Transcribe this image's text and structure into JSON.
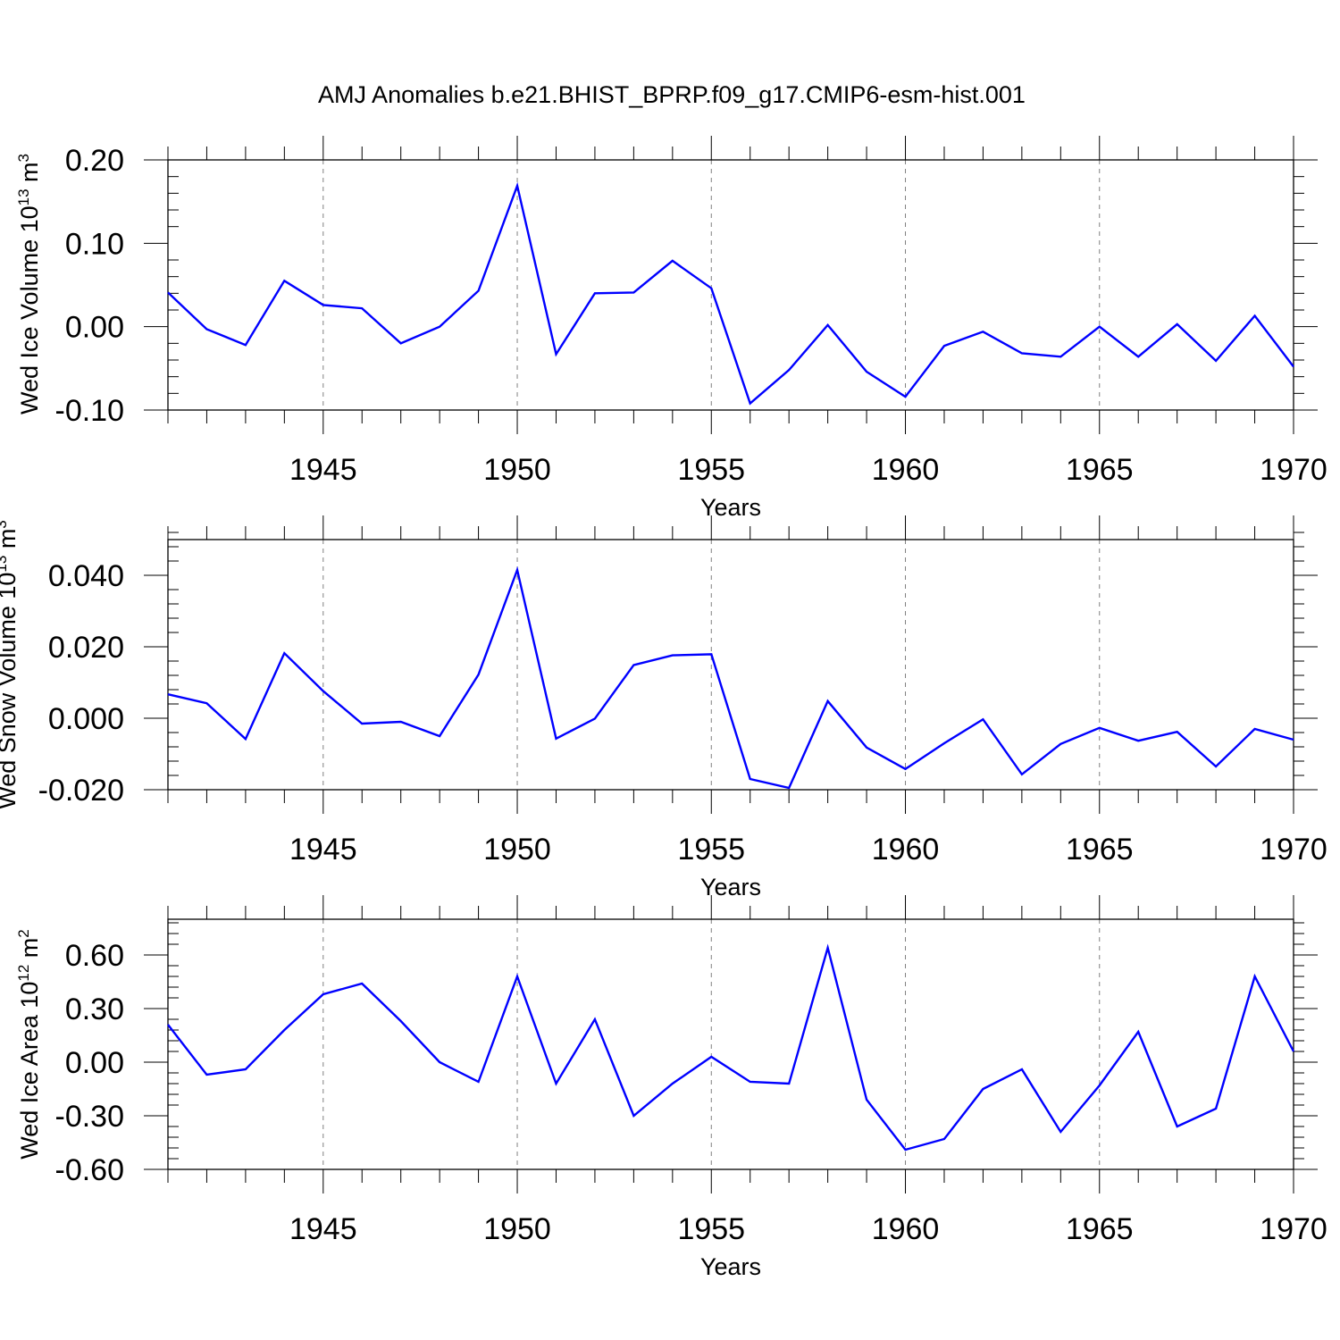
{
  "chart_data": [
    {
      "type": "line",
      "title": "AMJ Anomalies b.e21.BHIST_BPRP.f09_g17.CMIP6-esm-hist.001",
      "xlabel": "Years",
      "ylabel": {
        "base": "Wed Ice Volume 10",
        "exp": "13",
        "unit": " m",
        "unit_exp": "3"
      },
      "xlim": [
        1941,
        1970
      ],
      "ylim": [
        -0.1,
        0.2
      ],
      "xticks": [
        "1945",
        "1950",
        "1955",
        "1960",
        "1965",
        "1970"
      ],
      "yticks": [
        "0.20",
        "0.10",
        "0.00",
        "-0.10"
      ],
      "grid": "vertical dashed at major x ticks",
      "line_color": "#0000ff",
      "series": [
        {
          "x": [
            1941,
            1942,
            1943,
            1944,
            1945,
            1946,
            1947,
            1948,
            1949,
            1950,
            1951,
            1952,
            1953,
            1954,
            1955,
            1956,
            1957,
            1958,
            1959,
            1960,
            1961,
            1962,
            1963,
            1964,
            1965,
            1966,
            1967,
            1968,
            1969,
            1970
          ],
          "values": [
            0.041,
            -0.003,
            -0.022,
            0.055,
            0.026,
            0.022,
            -0.02,
            0.0,
            0.043,
            0.169,
            -0.033,
            0.04,
            0.041,
            0.079,
            0.046,
            -0.092,
            -0.052,
            0.002,
            -0.054,
            -0.084,
            -0.023,
            -0.006,
            -0.032,
            -0.036,
            0.0,
            -0.036,
            0.003,
            -0.041,
            0.013,
            -0.048
          ]
        }
      ]
    },
    {
      "type": "line",
      "title": "",
      "xlabel": "Years",
      "ylabel": {
        "base": "Wed Snow Volume 10",
        "exp": "13",
        "unit": " m",
        "unit_exp": "3"
      },
      "xlim": [
        1941,
        1970
      ],
      "ylim": [
        -0.02,
        0.05
      ],
      "xticks": [
        "1945",
        "1950",
        "1955",
        "1960",
        "1965",
        "1970"
      ],
      "yticks": [
        "0.040",
        "0.020",
        "0.000",
        "-0.020"
      ],
      "grid": "vertical dashed at major x ticks",
      "line_color": "#0000ff",
      "series": [
        {
          "x": [
            1941,
            1942,
            1943,
            1944,
            1945,
            1946,
            1947,
            1948,
            1949,
            1950,
            1951,
            1952,
            1953,
            1954,
            1955,
            1956,
            1957,
            1958,
            1959,
            1960,
            1961,
            1962,
            1963,
            1964,
            1965,
            1966,
            1967,
            1968,
            1969,
            1970
          ],
          "values": [
            0.0067,
            0.0042,
            -0.0058,
            0.0182,
            0.0076,
            -0.0015,
            -0.001,
            -0.005,
            0.0122,
            0.0415,
            -0.0057,
            -0.0001,
            0.0149,
            0.0176,
            0.0179,
            -0.017,
            -0.0195,
            0.0048,
            -0.0082,
            -0.0142,
            -0.007,
            -0.0003,
            -0.0157,
            -0.0072,
            -0.0027,
            -0.0063,
            -0.0038,
            -0.0135,
            -0.003,
            -0.006
          ]
        }
      ]
    },
    {
      "type": "line",
      "title": "",
      "xlabel": "Years",
      "ylabel": {
        "base": "Wed Ice Area 10",
        "exp": "12",
        "unit": " m",
        "unit_exp": "2"
      },
      "xlim": [
        1941,
        1970
      ],
      "ylim": [
        -0.6,
        0.8
      ],
      "xticks": [
        "1945",
        "1950",
        "1955",
        "1960",
        "1965",
        "1970"
      ],
      "yticks": [
        "0.60",
        "0.30",
        "0.00",
        "-0.30",
        "-0.60"
      ],
      "grid": "vertical dashed at major x ticks",
      "line_color": "#0000ff",
      "series": [
        {
          "x": [
            1941,
            1942,
            1943,
            1944,
            1945,
            1946,
            1947,
            1948,
            1949,
            1950,
            1951,
            1952,
            1953,
            1954,
            1955,
            1956,
            1957,
            1958,
            1959,
            1960,
            1961,
            1962,
            1963,
            1964,
            1965,
            1966,
            1967,
            1968,
            1969,
            1970
          ],
          "values": [
            0.21,
            -0.07,
            -0.04,
            0.18,
            0.38,
            0.44,
            0.23,
            0.0,
            -0.11,
            0.48,
            -0.12,
            0.24,
            -0.3,
            -0.12,
            0.03,
            -0.11,
            -0.12,
            0.64,
            -0.21,
            -0.49,
            -0.43,
            -0.15,
            -0.04,
            -0.39,
            -0.13,
            0.17,
            -0.36,
            -0.26,
            0.48,
            0.06
          ]
        }
      ]
    }
  ]
}
